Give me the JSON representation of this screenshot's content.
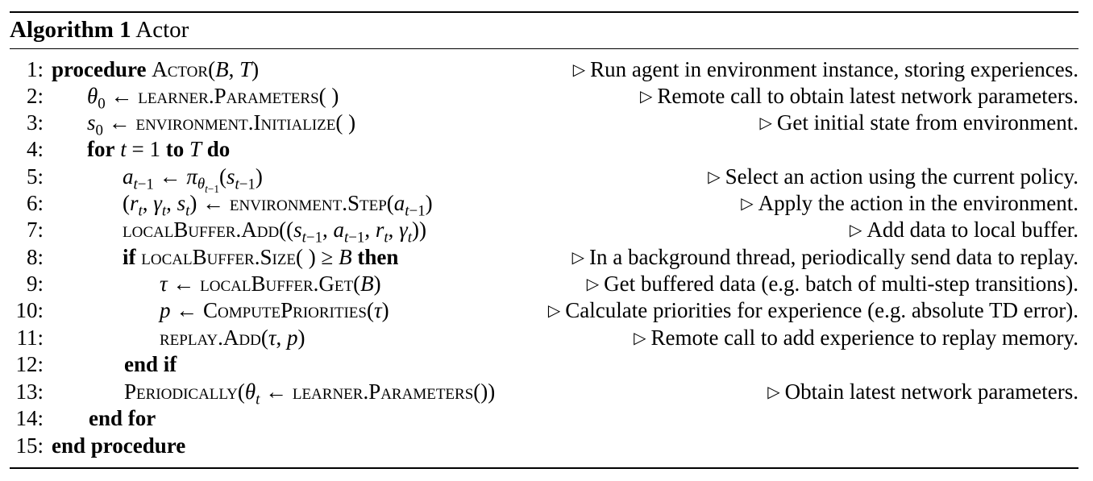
{
  "algorithm": {
    "label": "Algorithm 1",
    "name": "Actor"
  },
  "keywords": {
    "procedure": "procedure",
    "for": "for",
    "to": "to",
    "do": "do",
    "if": "if",
    "then": "then",
    "end_if": "end if",
    "end_for": "end for",
    "end_procedure": "end procedure"
  },
  "lines": [
    {
      "number": "1:",
      "comment": "Run agent in environment instance, storing experiences."
    },
    {
      "number": "2:",
      "comment": "Remote call to obtain latest network parameters."
    },
    {
      "number": "3:",
      "comment": "Get initial state from environment."
    },
    {
      "number": "4:",
      "comment": ""
    },
    {
      "number": "5:",
      "comment": "Select an action using the current policy."
    },
    {
      "number": "6:",
      "comment": "Apply the action in the environment."
    },
    {
      "number": "7:",
      "comment": "Add data to local buffer."
    },
    {
      "number": "8:",
      "comment": "In a background thread, periodically send data to replay."
    },
    {
      "number": "9:",
      "comment": "Get buffered data (e.g. batch of multi-step transitions)."
    },
    {
      "number": "10:",
      "comment": "Calculate priorities for experience (e.g. absolute TD error)."
    },
    {
      "number": "11:",
      "comment": "Remote call to add experience to replay memory."
    },
    {
      "number": "12:",
      "comment": ""
    },
    {
      "number": "13:",
      "comment": "Obtain latest network parameters."
    },
    {
      "number": "14:",
      "comment": ""
    },
    {
      "number": "15:",
      "comment": ""
    }
  ]
}
